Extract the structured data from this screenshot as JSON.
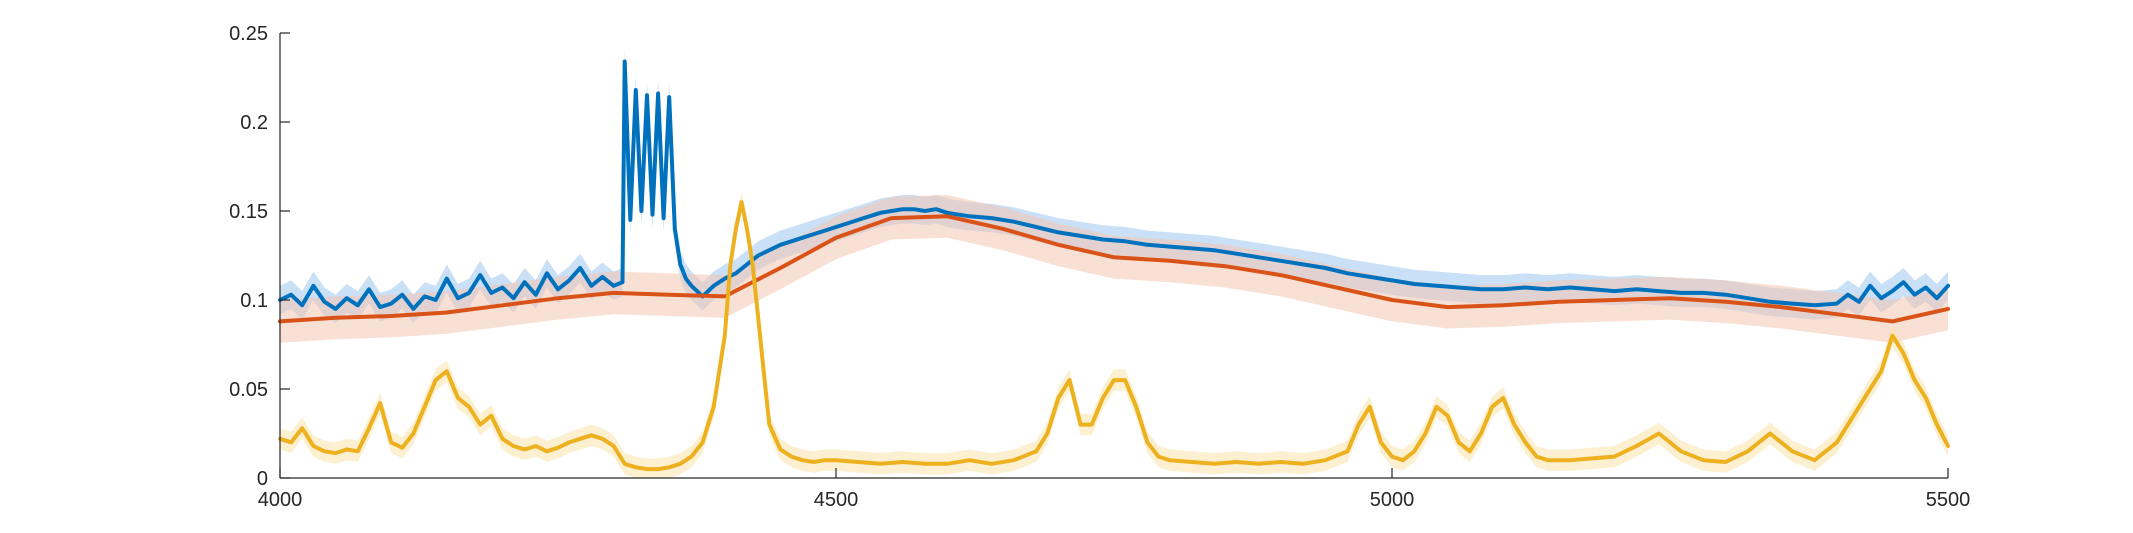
{
  "chart_data": {
    "type": "line",
    "title": "",
    "xlabel": "",
    "ylabel": "",
    "xlim": [
      4000,
      5500
    ],
    "ylim": [
      0,
      0.25
    ],
    "x_ticks": [
      4000,
      4500,
      5000,
      5500
    ],
    "x_tick_labels": [
      "4000",
      "4500",
      "5000",
      "5500"
    ],
    "y_ticks": [
      0,
      0.05,
      0.1,
      0.15,
      0.2,
      0.25
    ],
    "y_tick_labels": [
      "0",
      "0.05",
      "0.1",
      "0.15",
      "0.2",
      "0.25"
    ],
    "grid": false,
    "legend": "none",
    "series": [
      {
        "color": "#0072BD",
        "band_color": "#9DC7EE",
        "band_halfwidth": 0.008,
        "x": [
          4000,
          4010,
          4020,
          4030,
          4040,
          4050,
          4060,
          4070,
          4080,
          4090,
          4100,
          4110,
          4120,
          4130,
          4140,
          4150,
          4160,
          4170,
          4180,
          4190,
          4200,
          4210,
          4220,
          4230,
          4240,
          4250,
          4260,
          4270,
          4280,
          4290,
          4300,
          4308,
          4310,
          4315,
          4320,
          4325,
          4330,
          4335,
          4340,
          4345,
          4350,
          4355,
          4360,
          4365,
          4370,
          4375,
          4380,
          4390,
          4400,
          4410,
          4420,
          4430,
          4440,
          4450,
          4460,
          4470,
          4480,
          4490,
          4500,
          4510,
          4520,
          4530,
          4540,
          4550,
          4560,
          4570,
          4580,
          4590,
          4600,
          4620,
          4640,
          4660,
          4680,
          4700,
          4720,
          4740,
          4760,
          4780,
          4800,
          4820,
          4840,
          4860,
          4880,
          4900,
          4920,
          4940,
          4960,
          4980,
          5000,
          5020,
          5040,
          5060,
          5080,
          5100,
          5120,
          5140,
          5160,
          5180,
          5200,
          5220,
          5240,
          5260,
          5280,
          5300,
          5320,
          5340,
          5360,
          5380,
          5400,
          5410,
          5420,
          5430,
          5440,
          5450,
          5460,
          5470,
          5480,
          5490,
          5500
        ],
        "y": [
          0.1,
          0.103,
          0.097,
          0.108,
          0.099,
          0.095,
          0.101,
          0.097,
          0.106,
          0.096,
          0.098,
          0.103,
          0.095,
          0.102,
          0.1,
          0.112,
          0.101,
          0.104,
          0.114,
          0.104,
          0.107,
          0.101,
          0.11,
          0.103,
          0.115,
          0.106,
          0.111,
          0.118,
          0.108,
          0.113,
          0.108,
          0.11,
          0.234,
          0.145,
          0.218,
          0.15,
          0.215,
          0.148,
          0.216,
          0.146,
          0.214,
          0.14,
          0.12,
          0.112,
          0.108,
          0.105,
          0.102,
          0.108,
          0.112,
          0.115,
          0.12,
          0.125,
          0.128,
          0.131,
          0.133,
          0.135,
          0.137,
          0.139,
          0.141,
          0.143,
          0.145,
          0.147,
          0.149,
          0.15,
          0.151,
          0.151,
          0.15,
          0.151,
          0.149,
          0.147,
          0.146,
          0.144,
          0.141,
          0.138,
          0.136,
          0.134,
          0.133,
          0.131,
          0.13,
          0.129,
          0.128,
          0.126,
          0.124,
          0.122,
          0.12,
          0.118,
          0.115,
          0.113,
          0.111,
          0.109,
          0.108,
          0.107,
          0.106,
          0.106,
          0.107,
          0.106,
          0.107,
          0.106,
          0.105,
          0.106,
          0.105,
          0.104,
          0.104,
          0.103,
          0.101,
          0.099,
          0.098,
          0.097,
          0.098,
          0.103,
          0.099,
          0.108,
          0.101,
          0.105,
          0.11,
          0.103,
          0.107,
          0.101,
          0.108
        ]
      },
      {
        "color": "#D95319",
        "band_color": "#F4C6B2",
        "band_halfwidth": 0.012,
        "x": [
          4000,
          4050,
          4100,
          4150,
          4200,
          4250,
          4300,
          4350,
          4400,
          4450,
          4500,
          4550,
          4600,
          4650,
          4700,
          4750,
          4800,
          4850,
          4900,
          4950,
          5000,
          5050,
          5100,
          5150,
          5200,
          5250,
          5300,
          5350,
          5400,
          5450,
          5500
        ],
        "y": [
          0.088,
          0.09,
          0.091,
          0.093,
          0.097,
          0.101,
          0.104,
          0.103,
          0.102,
          0.118,
          0.135,
          0.146,
          0.147,
          0.14,
          0.131,
          0.124,
          0.122,
          0.119,
          0.114,
          0.107,
          0.1,
          0.096,
          0.097,
          0.099,
          0.1,
          0.101,
          0.099,
          0.096,
          0.092,
          0.088,
          0.095
        ]
      },
      {
        "color": "#EDB120",
        "band_color": "#F9E3AC",
        "band_halfwidth": 0.006,
        "x": [
          4000,
          4010,
          4020,
          4030,
          4040,
          4050,
          4060,
          4070,
          4080,
          4090,
          4100,
          4110,
          4120,
          4130,
          4140,
          4150,
          4160,
          4170,
          4180,
          4190,
          4200,
          4210,
          4220,
          4230,
          4240,
          4250,
          4260,
          4270,
          4280,
          4290,
          4300,
          4310,
          4320,
          4330,
          4340,
          4350,
          4360,
          4370,
          4380,
          4390,
          4400,
          4405,
          4410,
          4415,
          4420,
          4425,
          4430,
          4435,
          4440,
          4450,
          4460,
          4470,
          4480,
          4490,
          4500,
          4520,
          4540,
          4560,
          4580,
          4600,
          4620,
          4640,
          4660,
          4680,
          4690,
          4700,
          4710,
          4720,
          4730,
          4740,
          4750,
          4760,
          4770,
          4780,
          4790,
          4800,
          4820,
          4840,
          4860,
          4880,
          4900,
          4920,
          4940,
          4960,
          4970,
          4980,
          4990,
          5000,
          5010,
          5020,
          5030,
          5040,
          5050,
          5060,
          5070,
          5080,
          5090,
          5100,
          5110,
          5120,
          5130,
          5140,
          5160,
          5180,
          5200,
          5220,
          5240,
          5260,
          5280,
          5300,
          5320,
          5340,
          5360,
          5380,
          5400,
          5420,
          5440,
          5450,
          5460,
          5470,
          5480,
          5490,
          5500
        ],
        "y": [
          0.022,
          0.02,
          0.028,
          0.018,
          0.015,
          0.014,
          0.016,
          0.015,
          0.028,
          0.042,
          0.02,
          0.017,
          0.025,
          0.04,
          0.055,
          0.06,
          0.045,
          0.04,
          0.03,
          0.035,
          0.022,
          0.018,
          0.016,
          0.018,
          0.015,
          0.017,
          0.02,
          0.022,
          0.024,
          0.022,
          0.018,
          0.008,
          0.006,
          0.005,
          0.005,
          0.006,
          0.008,
          0.012,
          0.02,
          0.04,
          0.08,
          0.12,
          0.14,
          0.155,
          0.14,
          0.12,
          0.09,
          0.06,
          0.03,
          0.016,
          0.012,
          0.01,
          0.009,
          0.01,
          0.01,
          0.009,
          0.008,
          0.009,
          0.008,
          0.008,
          0.01,
          0.008,
          0.01,
          0.015,
          0.025,
          0.045,
          0.055,
          0.03,
          0.03,
          0.045,
          0.055,
          0.055,
          0.04,
          0.02,
          0.012,
          0.01,
          0.009,
          0.008,
          0.009,
          0.008,
          0.009,
          0.008,
          0.01,
          0.015,
          0.03,
          0.04,
          0.02,
          0.012,
          0.01,
          0.015,
          0.025,
          0.04,
          0.035,
          0.02,
          0.015,
          0.025,
          0.04,
          0.045,
          0.03,
          0.02,
          0.012,
          0.01,
          0.01,
          0.011,
          0.012,
          0.018,
          0.025,
          0.015,
          0.01,
          0.009,
          0.015,
          0.025,
          0.015,
          0.01,
          0.02,
          0.04,
          0.06,
          0.08,
          0.07,
          0.055,
          0.045,
          0.03,
          0.018
        ]
      }
    ]
  }
}
